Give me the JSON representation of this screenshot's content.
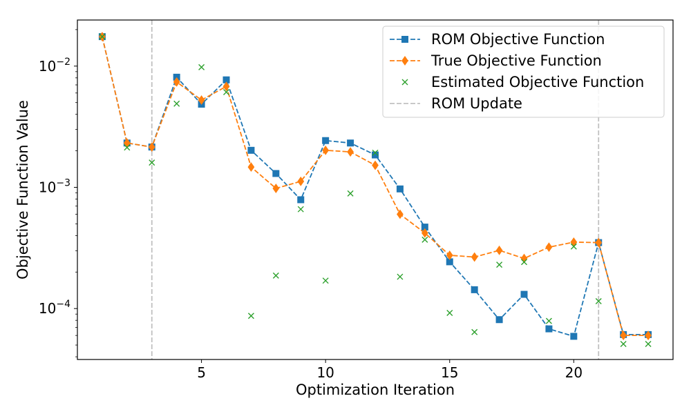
{
  "chart_data": {
    "type": "line",
    "title": "",
    "xlabel": "Optimization Iteration",
    "ylabel": "Objective Function Value",
    "yscale": "log",
    "xlim": [
      0,
      24
    ],
    "ylim": [
      3.8e-05,
      0.024
    ],
    "x_ticks": [
      5,
      10,
      15,
      20
    ],
    "y_ticks": [
      {
        "value": 0.01,
        "base": "10",
        "exp": "−2"
      },
      {
        "value": 0.001,
        "base": "10",
        "exp": "−3"
      },
      {
        "value": 0.0001,
        "base": "10",
        "exp": "−4"
      }
    ],
    "legend_position": "top-right",
    "series": [
      {
        "name": "ROM Objective Function",
        "color": "#1f77b4",
        "marker": "square",
        "linestyle": "dashed",
        "x": [
          1,
          2,
          3,
          4,
          5,
          6,
          7,
          8,
          9,
          10,
          11,
          12,
          13,
          14,
          15,
          16,
          17,
          18,
          19,
          20,
          21,
          22,
          23
        ],
        "values": [
          0.0175,
          0.00232,
          0.00215,
          0.0081,
          0.00485,
          0.0077,
          0.00202,
          0.0013,
          0.00079,
          0.00243,
          0.00232,
          0.00185,
          0.00097,
          0.00047,
          0.000243,
          0.000143,
          8.1e-05,
          0.000131,
          6.8e-05,
          5.9e-05,
          0.00035,
          6.1e-05,
          6.1e-05
        ]
      },
      {
        "name": "True Objective Function",
        "color": "#ff7f0e",
        "marker": "diamond",
        "linestyle": "dashed",
        "x": [
          1,
          2,
          3,
          4,
          5,
          6,
          7,
          8,
          9,
          10,
          11,
          12,
          13,
          14,
          15,
          16,
          17,
          18,
          19,
          20,
          21,
          22,
          23
        ],
        "values": [
          0.0175,
          0.00232,
          0.00215,
          0.0074,
          0.00525,
          0.0068,
          0.00147,
          0.00098,
          0.00112,
          0.00202,
          0.00196,
          0.00152,
          0.0006,
          0.00042,
          0.000275,
          0.000266,
          0.000302,
          0.000259,
          0.000321,
          0.000353,
          0.00035,
          6e-05,
          6e-05
        ]
      },
      {
        "name": "Estimated Objective Function",
        "color": "#2ca02c",
        "marker": "x",
        "linestyle": "none",
        "x": [
          1,
          2,
          3,
          4,
          5,
          6,
          7,
          8,
          9,
          10,
          11,
          12,
          13,
          14,
          15,
          16,
          17,
          18,
          19,
          20,
          21,
          22,
          23
        ],
        "values": [
          0.0175,
          0.00213,
          0.0016,
          0.0049,
          0.0098,
          0.0061,
          8.7e-05,
          0.000187,
          0.00066,
          0.00017,
          0.00089,
          0.00193,
          0.000183,
          0.00037,
          9.2e-05,
          6.4e-05,
          0.00023,
          0.000242,
          7.9e-05,
          0.000325,
          0.000115,
          5.1e-05,
          5.1e-05
        ]
      }
    ],
    "vlines": {
      "name": "ROM Update",
      "color": "#c0c0c0",
      "linestyle": "dashed",
      "x": [
        3,
        21
      ]
    }
  }
}
